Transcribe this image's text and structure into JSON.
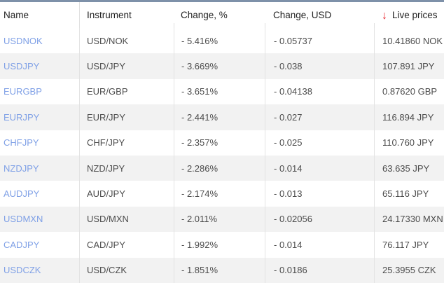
{
  "colors": {
    "topbar": "#7e91a9",
    "alt_row_bg": "#f2f2f2",
    "separator": "#e0e0e0",
    "symbol_link": "#7fa0e6",
    "sort_arrow_red": "#e8262e",
    "header_text": "#212121",
    "cell_text": "#4c4c4c"
  },
  "table": {
    "sort_arrow_glyph": "↓",
    "columns": [
      "Name",
      "Instrument",
      "Change, %",
      "Change, USD",
      "Live prices"
    ],
    "rows": [
      {
        "name": "USDNOK",
        "instrument": "USD/NOK",
        "change_pct": "- 5.416%",
        "change_usd": "- 0.05737",
        "live_price": "10.41860 NOK"
      },
      {
        "name": "USDJPY",
        "instrument": "USD/JPY",
        "change_pct": "- 3.669%",
        "change_usd": "- 0.038",
        "live_price": "107.891 JPY"
      },
      {
        "name": "EURGBP",
        "instrument": "EUR/GBP",
        "change_pct": "- 3.651%",
        "change_usd": "- 0.04138",
        "live_price": "0.87620 GBP"
      },
      {
        "name": "EURJPY",
        "instrument": "EUR/JPY",
        "change_pct": "- 2.441%",
        "change_usd": "- 0.027",
        "live_price": "116.894 JPY"
      },
      {
        "name": "CHFJPY",
        "instrument": "CHF/JPY",
        "change_pct": "- 2.357%",
        "change_usd": "- 0.025",
        "live_price": "110.760 JPY"
      },
      {
        "name": "NZDJPY",
        "instrument": "NZD/JPY",
        "change_pct": "- 2.286%",
        "change_usd": "- 0.014",
        "live_price": "63.635 JPY"
      },
      {
        "name": "AUDJPY",
        "instrument": "AUD/JPY",
        "change_pct": "- 2.174%",
        "change_usd": "- 0.013",
        "live_price": "65.116 JPY"
      },
      {
        "name": "USDMXN",
        "instrument": "USD/MXN",
        "change_pct": "- 2.011%",
        "change_usd": "- 0.02056",
        "live_price": "24.17330 MXN"
      },
      {
        "name": "CADJPY",
        "instrument": "CAD/JPY",
        "change_pct": "- 1.992%",
        "change_usd": "- 0.014",
        "live_price": "76.117 JPY"
      },
      {
        "name": "USDCZK",
        "instrument": "USD/CZK",
        "change_pct": "- 1.851%",
        "change_usd": "- 0.0186",
        "live_price": "25.3955 CZK"
      }
    ]
  }
}
